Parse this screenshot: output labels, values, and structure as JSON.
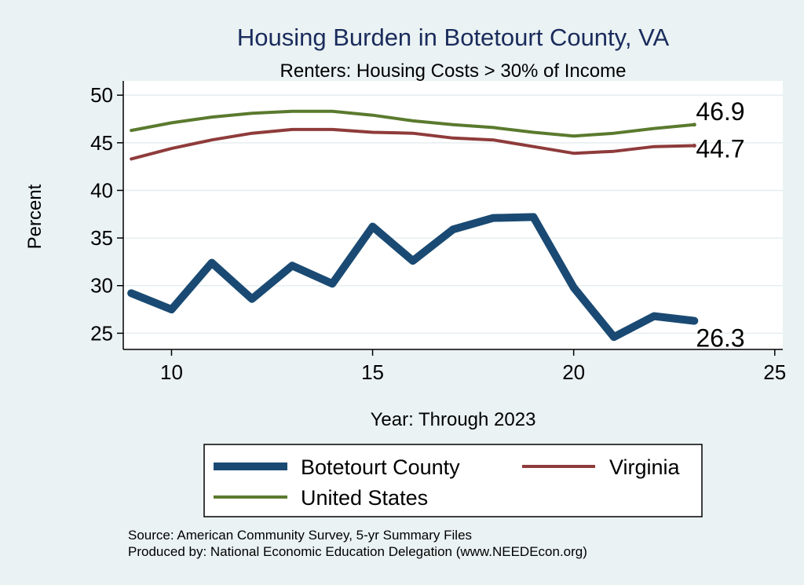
{
  "chart_data": {
    "type": "line",
    "title": "Housing Burden in Botetourt County, VA",
    "subtitle": "Renters: Housing Costs > 30% of Income",
    "xlabel": "Year: Through 2023",
    "ylabel": "Percent",
    "xlim": [
      8.8,
      25.2
    ],
    "ylim": [
      23.3,
      51.5
    ],
    "xticks": [
      10,
      15,
      20,
      25
    ],
    "yticks": [
      25,
      30,
      35,
      40,
      45,
      50
    ],
    "grid": true,
    "legend_position": "bottom",
    "series": [
      {
        "name": "Botetourt County",
        "color": "#1a4a73",
        "x": [
          9,
          10,
          11,
          12,
          13,
          14,
          15,
          16,
          17,
          18,
          19,
          20,
          21,
          22,
          23
        ],
        "values": [
          29.2,
          27.5,
          32.4,
          28.6,
          32.1,
          30.2,
          36.2,
          32.6,
          35.9,
          37.1,
          37.2,
          29.8,
          24.6,
          26.8,
          26.3
        ],
        "end_label": "26.3"
      },
      {
        "name": "Virginia",
        "color": "#8f3b3b",
        "x": [
          9,
          10,
          11,
          12,
          13,
          14,
          15,
          16,
          17,
          18,
          19,
          20,
          21,
          22,
          23
        ],
        "values": [
          43.3,
          44.4,
          45.3,
          46.0,
          46.4,
          46.4,
          46.1,
          46.0,
          45.5,
          45.3,
          44.6,
          43.9,
          44.1,
          44.6,
          44.7
        ],
        "end_label": "44.7"
      },
      {
        "name": "United States",
        "color": "#5a7a2e",
        "x": [
          9,
          10,
          11,
          12,
          13,
          14,
          15,
          16,
          17,
          18,
          19,
          20,
          21,
          22,
          23
        ],
        "values": [
          46.3,
          47.1,
          47.7,
          48.1,
          48.3,
          48.3,
          47.9,
          47.3,
          46.9,
          46.6,
          46.1,
          45.7,
          46.0,
          46.5,
          46.9
        ],
        "end_label": "46.9"
      }
    ],
    "source_lines": [
      "Source: American Community Survey, 5-yr Summary Files",
      "Produced by: National Economic Education Delegation (www.NEEDEcon.org)"
    ]
  }
}
